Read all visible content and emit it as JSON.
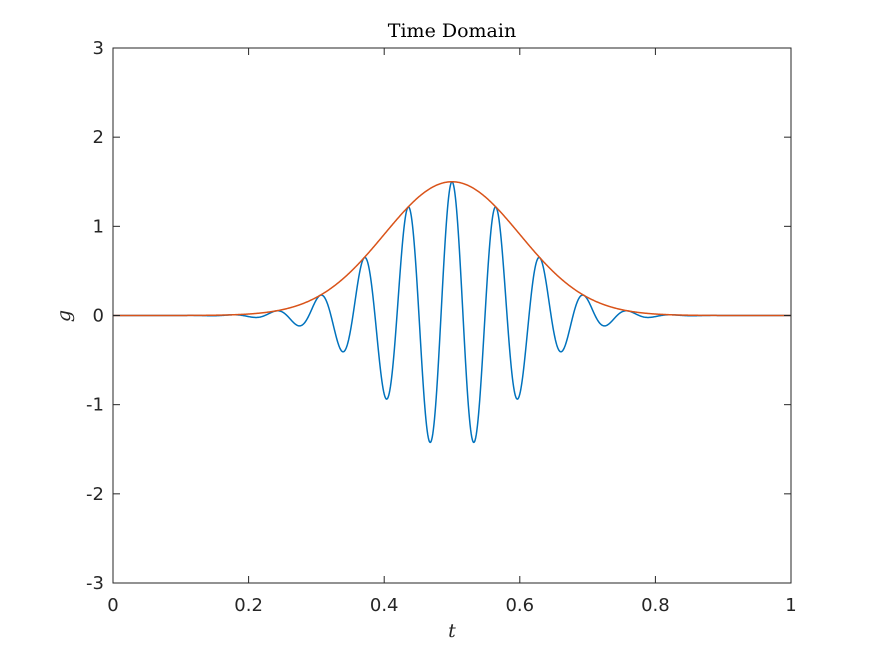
{
  "chart_data": {
    "type": "line",
    "title": "Time Domain",
    "xlabel": "t",
    "ylabel": "g",
    "xlim": [
      0,
      1
    ],
    "ylim": [
      -3,
      3
    ],
    "xticks": [
      0,
      0.2,
      0.4,
      0.6,
      0.8,
      1
    ],
    "xtick_labels": [
      "0",
      "0.2",
      "0.4",
      "0.6",
      "0.8",
      "1"
    ],
    "yticks": [
      -3,
      -2,
      -1,
      0,
      1,
      2,
      3
    ],
    "ytick_labels": [
      "-3",
      "-2",
      "-1",
      "0",
      "1",
      "2",
      "3"
    ],
    "grid": false,
    "box": true,
    "series": [
      {
        "color": "#0072BD",
        "curve": "gaussian-modulated cosine",
        "amplitude": 1.5,
        "center": 0.5,
        "sigma": 0.1,
        "frequency": 15.4
      },
      {
        "color": "#D95319",
        "curve": "gaussian envelope",
        "amplitude": 1.5,
        "center": 0.5,
        "sigma": 0.1
      }
    ]
  }
}
